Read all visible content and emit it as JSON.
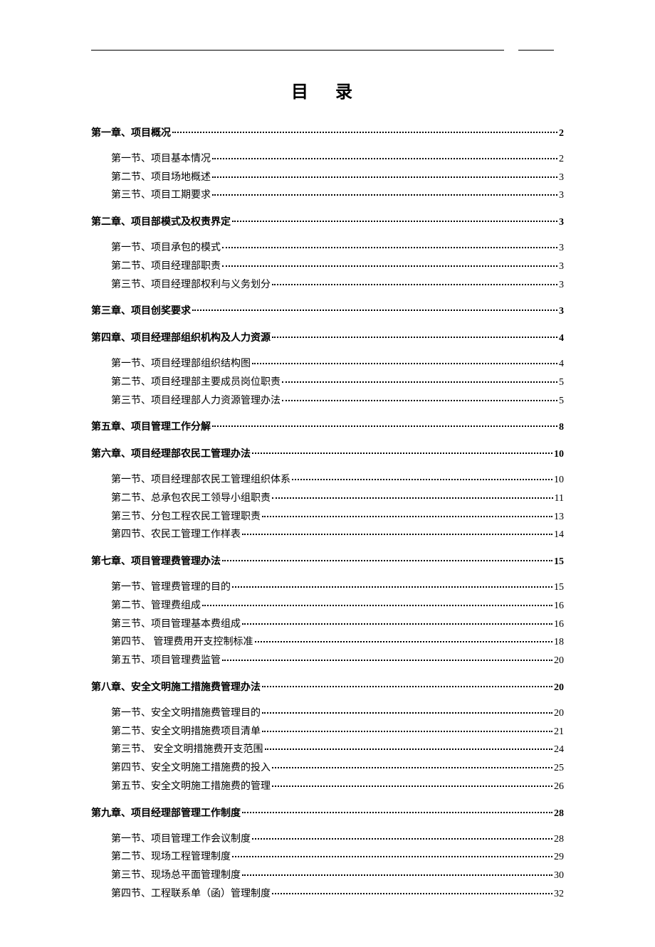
{
  "title": "目 录",
  "toc": [
    {
      "label": "第一章、项目概况",
      "page": "2",
      "sections": [
        {
          "label": "第一节、项目基本情况",
          "page": "2"
        },
        {
          "label": "第二节、项目场地概述",
          "page": "3"
        },
        {
          "label": "第三节、项目工期要求",
          "page": "3"
        }
      ]
    },
    {
      "label": "第二章、项目部模式及权责界定",
      "page": "3",
      "sections": [
        {
          "label": "第一节、项目承包的模式",
          "page": "3"
        },
        {
          "label": "第二节、项目经理部职责",
          "page": "3"
        },
        {
          "label": "第三节、项目经理部权利与义务划分",
          "page": "3"
        }
      ]
    },
    {
      "label": "第三章、项目创奖要求",
      "page": "3",
      "sections": []
    },
    {
      "label": "第四章、项目经理部组织机构及人力资源",
      "page": "4",
      "sections": [
        {
          "label": "第一节、项目经理部组织结构图",
          "page": "4"
        },
        {
          "label": "第二节、项目经理部主要成员岗位职责",
          "page": "5"
        },
        {
          "label": "第三节、项目经理部人力资源管理办法",
          "page": "5"
        }
      ]
    },
    {
      "label": "第五章、项目管理工作分解",
      "page": "8",
      "sections": []
    },
    {
      "label": "第六章、项目经理部农民工管理办法",
      "page": "10",
      "sections": [
        {
          "label": "第一节、项目经理部农民工管理组织体系",
          "page": "10"
        },
        {
          "label": "第二节、总承包农民工领导小组职责",
          "page": "11"
        },
        {
          "label": "第三节、分包工程农民工管理职责",
          "page": "13"
        },
        {
          "label": "第四节、农民工管理工作样表",
          "page": "14"
        }
      ]
    },
    {
      "label": "第七章、项目管理费管理办法",
      "page": "15",
      "sections": [
        {
          "label": "第一节、管理费管理的目的",
          "page": "15"
        },
        {
          "label": "第二节、管理费组成",
          "page": "16"
        },
        {
          "label": "第三节、项目管理基本费组成",
          "page": "16"
        },
        {
          "label": "第四节、 管理费用开支控制标准",
          "page": "18"
        },
        {
          "label": "第五节、项目管理费监管",
          "page": "20"
        }
      ]
    },
    {
      "label": "第八章、安全文明施工措施费管理办法",
      "page": "20",
      "sections": [
        {
          "label": "第一节、安全文明措施费管理目的",
          "page": "20"
        },
        {
          "label": "第二节、安全文明措施费项目清单",
          "page": "21"
        },
        {
          "label": "第三节、 安全文明措施费开支范围",
          "page": "24"
        },
        {
          "label": "第四节、安全文明施工措施费的投入",
          "page": "25"
        },
        {
          "label": "第五节、安全文明施工措施费的管理",
          "page": "26"
        }
      ]
    },
    {
      "label": "第九章、项目经理部管理工作制度",
      "page": "28",
      "sections": [
        {
          "label": "第一节、项目管理工作会议制度",
          "page": "28"
        },
        {
          "label": "第二节、现场工程管理制度",
          "page": "29"
        },
        {
          "label": "第三节、现场总平面管理制度",
          "page": "30"
        },
        {
          "label": "第四节、工程联系单（函）管理制度",
          "page": "32"
        }
      ]
    }
  ]
}
